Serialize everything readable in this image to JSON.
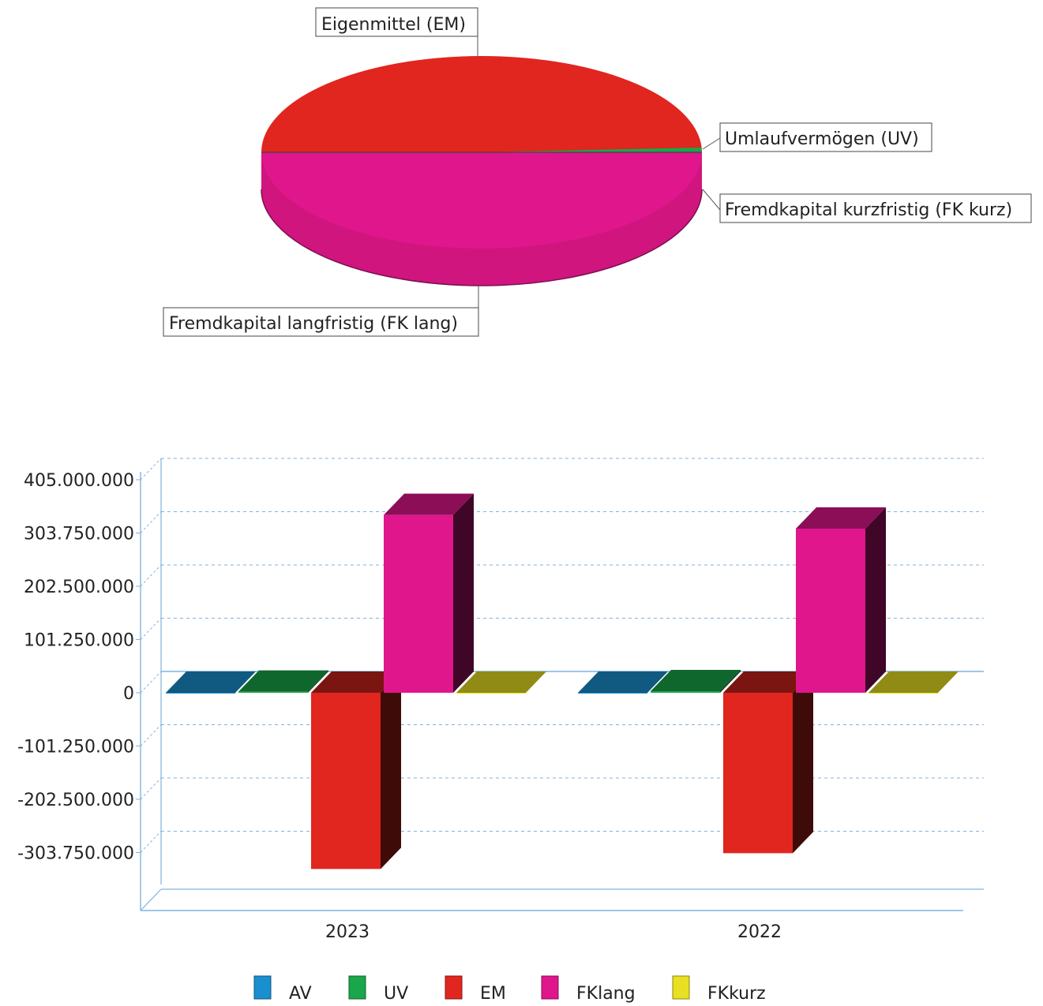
{
  "chart_data": [
    {
      "type": "pie",
      "labels": {
        "em": "Eigenmittel (EM)",
        "uv": "Umlaufvermögen (UV)",
        "fk_kurz": "Fremdkapital kurzfristig (FK kurz)",
        "fk_lang": "Fremdkapital langfristig (FK lang)"
      },
      "slices": [
        {
          "key": "em",
          "value": 49.7,
          "color": "#e0261f"
        },
        {
          "key": "uv",
          "value": 0.3,
          "color": "#1aa64a"
        },
        {
          "key": "fk_kurz",
          "value": 0.2,
          "color": "#e8e020"
        },
        {
          "key": "fk_lang",
          "value": 49.8,
          "color": "#e0168c"
        }
      ]
    },
    {
      "type": "bar",
      "categories": [
        "2023",
        "2022"
      ],
      "ylim": [
        -405000000,
        405000000
      ],
      "yticks": [
        {
          "value": 405000000,
          "label": "405.000.000"
        },
        {
          "value": 303750000,
          "label": "303.750.000"
        },
        {
          "value": 202500000,
          "label": "202.500.000"
        },
        {
          "value": 101250000,
          "label": "101.250.000"
        },
        {
          "value": 0,
          "label": "0"
        },
        {
          "value": -101250000,
          "label": "-101.250.000"
        },
        {
          "value": -202500000,
          "label": "-202.500.000"
        },
        {
          "value": -303750000,
          "label": "-303.750.000"
        }
      ],
      "series": [
        {
          "name": "AV",
          "color": "#1a8fd0",
          "values": [
            0,
            0
          ]
        },
        {
          "name": "UV",
          "color": "#1aa64a",
          "values": [
            2000000,
            3000000
          ]
        },
        {
          "name": "EM",
          "color": "#e0261f",
          "values": [
            -335000000,
            -305000000
          ]
        },
        {
          "name": "FKlang",
          "color": "#e0168c",
          "values": [
            338000000,
            312000000
          ]
        },
        {
          "name": "FKkurz",
          "color": "#e8e020",
          "values": [
            0,
            0
          ]
        }
      ],
      "grid": true,
      "legend": "bottom"
    }
  ]
}
